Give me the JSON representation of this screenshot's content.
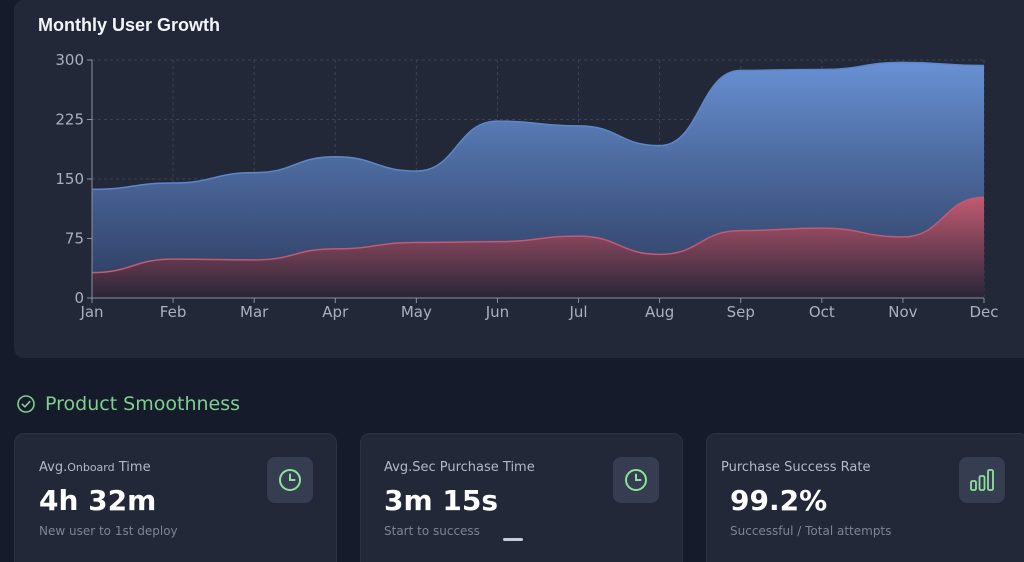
{
  "chart": {
    "title": "Monthly User Growth"
  },
  "chart_data": {
    "type": "area",
    "title": "Monthly User Growth",
    "categories": [
      "Jan",
      "Feb",
      "Mar",
      "Apr",
      "May",
      "Jun",
      "Jul",
      "Aug",
      "Sep",
      "Oct",
      "Nov",
      "Dec"
    ],
    "y_ticks": [
      "300",
      "225",
      "150",
      "75",
      "0"
    ],
    "ylim": [
      0,
      300
    ],
    "grid": true,
    "series": [
      {
        "key": "upper",
        "color": "#5e87c9",
        "values": [
          137,
          145,
          158,
          178,
          160,
          223,
          217,
          192,
          287,
          288,
          297,
          293
        ]
      },
      {
        "key": "lower",
        "color": "#c25a72",
        "values": [
          32,
          49,
          48,
          62,
          70,
          71,
          78,
          55,
          85,
          88,
          77,
          127
        ]
      }
    ]
  },
  "section": {
    "title": "Product Smoothness",
    "icon": "check-circle-icon",
    "accent": "#7fd08f"
  },
  "metrics": [
    {
      "label_main": "Avg.",
      "label_small": "Onboard",
      "label_rest": " Time",
      "value": "4h 32m",
      "sub": "New user to 1st deploy",
      "icon": "clock-icon"
    },
    {
      "label_main": "Avg.Sec Purchase Time",
      "value": "3m 15s",
      "sub": "Start to success",
      "icon": "clock-icon"
    },
    {
      "label_main": "Purchase Success Rate",
      "value": "99.2%",
      "sub": "Successful / Total attempts",
      "icon": "bar-chart-icon"
    }
  ]
}
